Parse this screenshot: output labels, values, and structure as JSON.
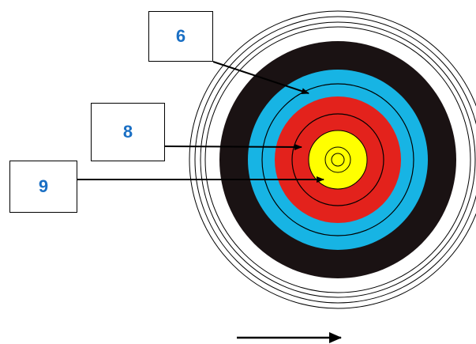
{
  "colors": {
    "outline": "#000000",
    "white_ring": "#ffffff",
    "black_ring": "#1a1213",
    "blue_ring": "#17b4e4",
    "red_ring": "#e3221c",
    "gold_ring": "#ffff00",
    "label_text": "#1a6fc4"
  },
  "labels": [
    {
      "id": "6",
      "text": "6",
      "points_to": "blue-ring"
    },
    {
      "id": "8",
      "text": "8",
      "points_to": "red-ring"
    },
    {
      "id": "9",
      "text": "9",
      "points_to": "gold-ring"
    }
  ]
}
